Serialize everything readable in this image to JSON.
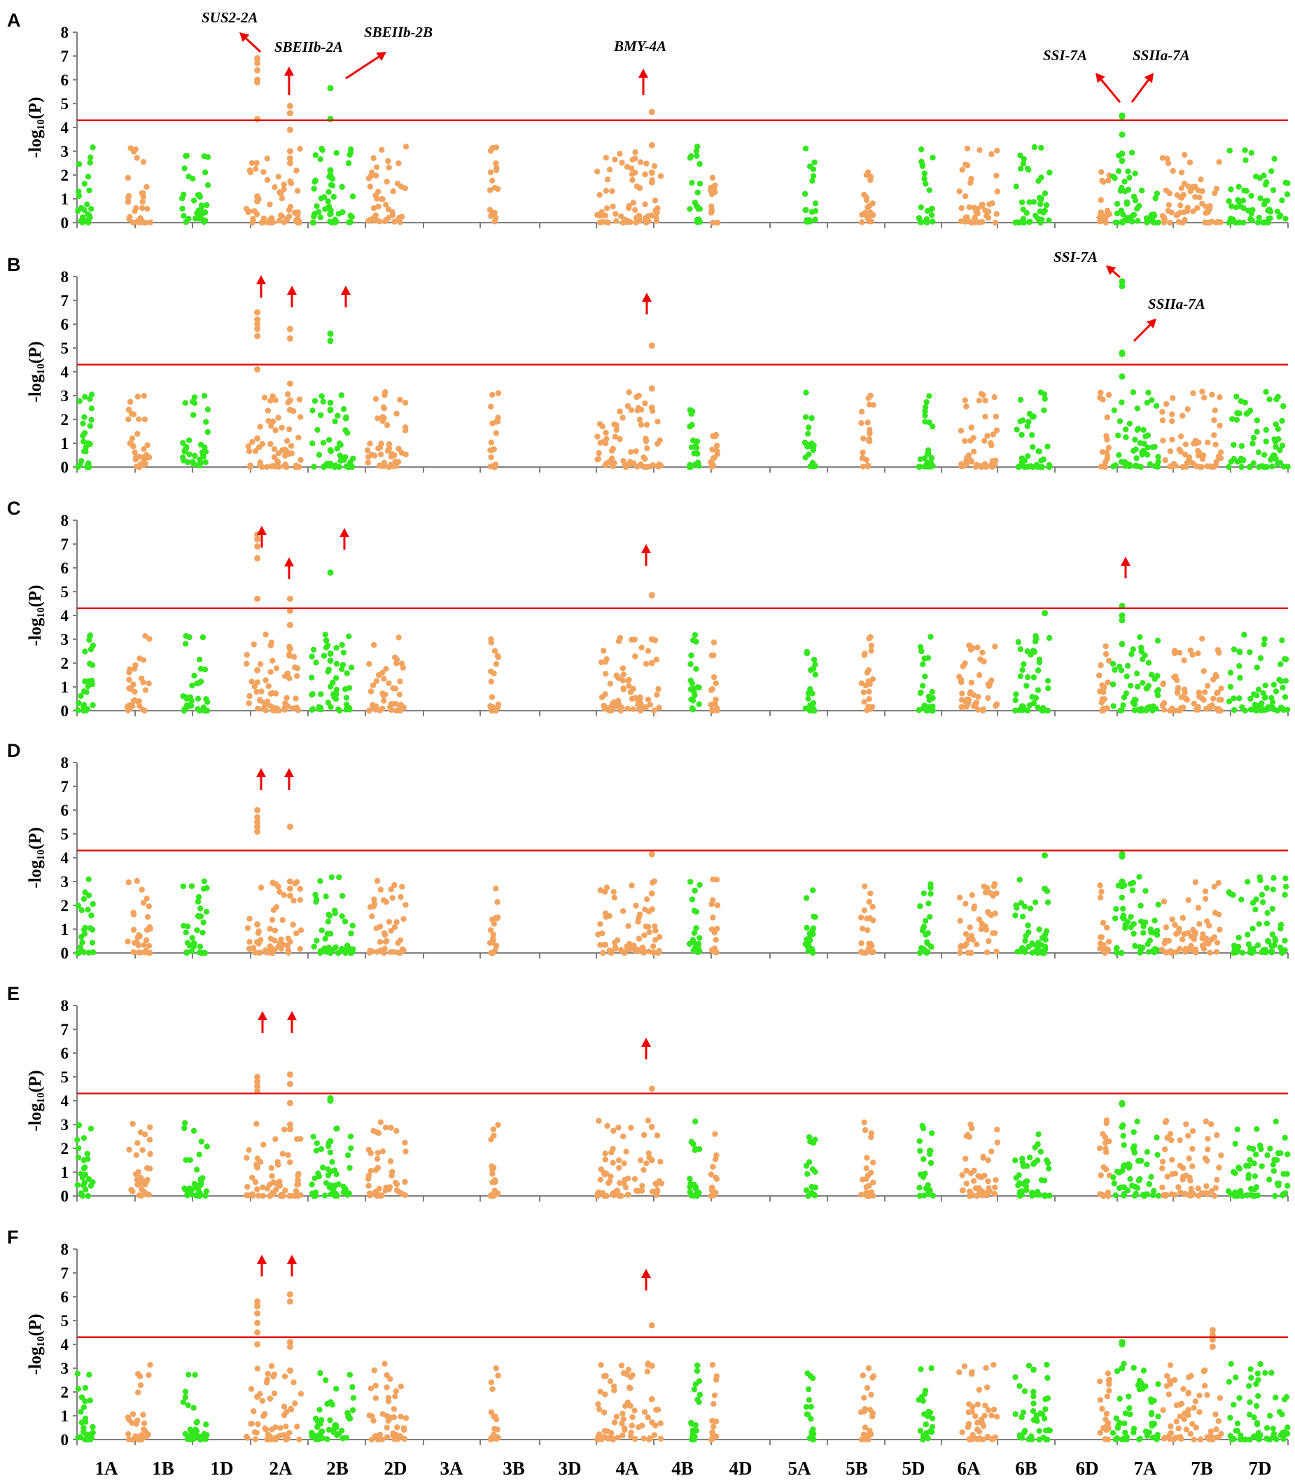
{
  "colors": {
    "orange": "#f2a35e",
    "green": "#33e61e",
    "threshold": "#e01010",
    "arrow": "#ee0000",
    "axis": "#7f7f7f"
  },
  "chart_data": {
    "type": "scatter",
    "layout": "manhattan",
    "ylabel": "-log₁₀(P)",
    "yticks": [
      0,
      1,
      2,
      3,
      4,
      5,
      6,
      7,
      8
    ],
    "ylim": [
      0,
      8
    ],
    "threshold": 4.3,
    "chromosomes": [
      "1A",
      "1B",
      "1D",
      "2A",
      "2B",
      "2D",
      "3A",
      "3B",
      "3D",
      "4A",
      "4B",
      "4D",
      "5A",
      "5B",
      "5D",
      "6A",
      "6B",
      "6D",
      "7A",
      "7B",
      "7D"
    ],
    "panels": [
      {
        "label": "A",
        "genes": [
          {
            "name": "SUS2-2A"
          },
          {
            "name": "SBEIIb-2A"
          },
          {
            "name": "SBEIIb-2B"
          },
          {
            "name": "BMY-4A"
          },
          {
            "name": "SSI-7A"
          },
          {
            "name": "SSIIa-7A"
          }
        ],
        "peaks": [
          {
            "chr": "2A",
            "pos": 0.2,
            "color": "orange",
            "values": [
              6.9,
              6.7,
              6.4,
              6.0,
              5.9,
              4.35,
              1.1,
              0.9
            ]
          },
          {
            "chr": "2A",
            "pos": 0.8,
            "color": "orange",
            "values": [
              4.9,
              4.6,
              3.9,
              3.0,
              2.7,
              2.5
            ]
          },
          {
            "chr": "2B",
            "pos": 0.45,
            "color": "green",
            "values": [
              5.65,
              4.35,
              2.2,
              2.0
            ]
          },
          {
            "chr": "4A",
            "pos": 0.85,
            "color": "orange",
            "values": [
              4.65,
              3.25,
              2.1,
              1.7
            ]
          },
          {
            "chr": "7A",
            "pos": 0.2,
            "color": "green",
            "values": [
              4.5,
              4.45,
              3.7,
              2.9,
              2.6
            ]
          }
        ]
      },
      {
        "label": "B",
        "genes": [
          {
            "name": "SSI-7A"
          },
          {
            "name": "SSIIa-7A"
          }
        ],
        "peaks": [
          {
            "chr": "2A",
            "pos": 0.2,
            "color": "orange",
            "values": [
              6.5,
              6.2,
              6.0,
              5.8,
              5.5,
              4.1,
              1.2
            ]
          },
          {
            "chr": "2A",
            "pos": 0.8,
            "color": "orange",
            "values": [
              5.8,
              5.4,
              3.5,
              2.8,
              2.4
            ]
          },
          {
            "chr": "2B",
            "pos": 0.45,
            "color": "green",
            "values": [
              5.6,
              5.3,
              2.7,
              2.4
            ]
          },
          {
            "chr": "4A",
            "pos": 0.85,
            "color": "orange",
            "values": [
              5.1,
              3.3,
              2.5
            ]
          },
          {
            "chr": "7A",
            "pos": 0.2,
            "color": "green",
            "values": [
              7.8,
              7.6,
              4.8,
              4.75,
              3.8
            ]
          }
        ]
      },
      {
        "label": "C",
        "genes": [],
        "peaks": [
          {
            "chr": "2A",
            "pos": 0.2,
            "color": "orange",
            "values": [
              7.4,
              7.2,
              6.9,
              6.4,
              4.7,
              1.7
            ]
          },
          {
            "chr": "2A",
            "pos": 0.8,
            "color": "orange",
            "values": [
              4.7,
              4.2,
              3.6,
              2.6
            ]
          },
          {
            "chr": "2B",
            "pos": 0.45,
            "color": "green",
            "values": [
              5.8,
              2.4,
              2.1
            ]
          },
          {
            "chr": "4A",
            "pos": 0.85,
            "color": "orange",
            "values": [
              4.85,
              3.0,
              2.0
            ]
          },
          {
            "chr": "6B",
            "pos": 0.85,
            "color": "green",
            "values": [
              4.1
            ]
          },
          {
            "chr": "7A",
            "pos": 0.2,
            "color": "green",
            "values": [
              4.4,
              4.0,
              3.8,
              2.8
            ]
          }
        ]
      },
      {
        "label": "D",
        "genes": [],
        "peaks": [
          {
            "chr": "2A",
            "pos": 0.2,
            "color": "orange",
            "values": [
              6.0,
              5.7,
              5.5,
              5.3,
              5.1,
              1.2
            ]
          },
          {
            "chr": "2A",
            "pos": 0.8,
            "color": "orange",
            "values": [
              5.3,
              3.0,
              2.7,
              2.4
            ]
          },
          {
            "chr": "4A",
            "pos": 0.85,
            "color": "orange",
            "values": [
              4.15,
              2.5
            ]
          },
          {
            "chr": "6B",
            "pos": 0.85,
            "color": "green",
            "values": [
              4.1,
              2.7
            ]
          },
          {
            "chr": "7A",
            "pos": 0.2,
            "color": "green",
            "values": [
              4.15,
              4.05,
              3.0,
              2.8
            ]
          }
        ]
      },
      {
        "label": "E",
        "genes": [],
        "peaks": [
          {
            "chr": "2A",
            "pos": 0.2,
            "color": "orange",
            "values": [
              5.0,
              4.8,
              4.6,
              4.4,
              1.2
            ]
          },
          {
            "chr": "2A",
            "pos": 0.8,
            "color": "orange",
            "values": [
              5.1,
              4.7,
              3.9,
              3.0,
              2.8
            ]
          },
          {
            "chr": "2B",
            "pos": 0.45,
            "color": "green",
            "values": [
              4.1,
              4.0,
              2.3
            ]
          },
          {
            "chr": "4A",
            "pos": 0.85,
            "color": "orange",
            "values": [
              4.5,
              2.9,
              1.5
            ]
          },
          {
            "chr": "7A",
            "pos": 0.2,
            "color": "green",
            "values": [
              3.9,
              3.85,
              2.9
            ]
          }
        ]
      },
      {
        "label": "F",
        "genes": [],
        "peaks": [
          {
            "chr": "2A",
            "pos": 0.2,
            "color": "orange",
            "values": [
              5.8,
              5.6,
              5.3,
              4.9,
              4.5,
              4.0,
              1.8
            ]
          },
          {
            "chr": "2A",
            "pos": 0.8,
            "color": "orange",
            "values": [
              6.1,
              5.8,
              4.1,
              3.9,
              2.9
            ]
          },
          {
            "chr": "4A",
            "pos": 0.85,
            "color": "orange",
            "values": [
              4.8,
              3.1,
              1.7
            ]
          },
          {
            "chr": "7A",
            "pos": 0.2,
            "color": "green",
            "values": [
              4.1,
              4.0,
              3.0
            ]
          },
          {
            "chr": "7B",
            "pos": 0.85,
            "color": "orange",
            "values": [
              4.6,
              4.4,
              4.2,
              3.9
            ]
          }
        ]
      }
    ]
  }
}
